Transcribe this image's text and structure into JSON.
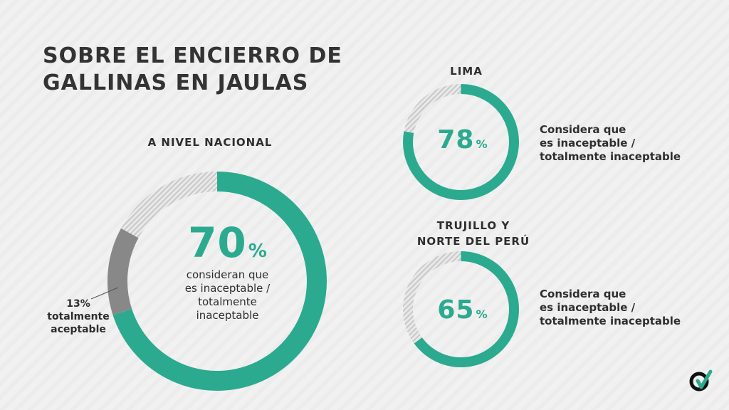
{
  "title": "SOBRE EL ENCIERRO DE\nGALLINAS EN JAULAS",
  "colors": {
    "teal": "#2baa8f",
    "gray": "#888888",
    "hatch": "#c8c8c8",
    "text": "#2e2e2e"
  },
  "chart_data": [
    {
      "type": "pie",
      "section_label": "A NIVEL NACIONAL",
      "slices": [
        {
          "label": "consideran que es inaceptable / totalmente inaceptable",
          "value": 70,
          "color": "#2baa8f"
        },
        {
          "label": "totalmente aceptable",
          "value": 13,
          "color": "#888888"
        },
        {
          "label": "",
          "value": 17,
          "color": "hatch"
        }
      ],
      "value_text": "70",
      "unit": "%",
      "description": "consideran que\nes inaceptable /\ntotalmente\ninaceptable",
      "note": "13%\ntotalmente\naceptable"
    },
    {
      "type": "pie",
      "section_label": "LIMA",
      "slices": [
        {
          "label": "Considera que es inaceptable / totalmente inaceptable",
          "value": 78,
          "color": "#2baa8f"
        },
        {
          "label": "",
          "value": 22,
          "color": "hatch"
        }
      ],
      "value_text": "78",
      "unit": "%",
      "description": "Considera que\nes inaceptable /\ntotalmente inaceptable"
    },
    {
      "type": "pie",
      "section_label": "TRUJILLO Y\nNORTE DEL PERÚ",
      "slices": [
        {
          "label": "Considera que es inaceptable / totalmente inaceptable",
          "value": 65,
          "color": "#2baa8f"
        },
        {
          "label": "",
          "value": 35,
          "color": "hatch"
        }
      ],
      "value_text": "65",
      "unit": "%",
      "description": "Considera que\nes inaceptable /\ntotalmente inaceptable"
    }
  ],
  "logo_icon": "brand-logo-icon"
}
